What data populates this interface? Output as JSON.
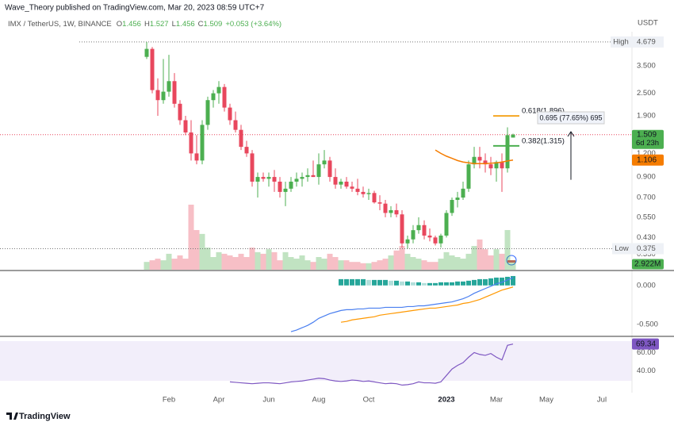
{
  "header": {
    "publisher": "Wave_Theory published on TradingView.com, Mar 20, 2023 08:59 UTC+7",
    "currency": "USDT"
  },
  "legend": {
    "symbol": "IMX / TetherUS, 1W, BINANCE",
    "field_labels": [
      "O",
      "H",
      "L",
      "C"
    ],
    "change": "+0.053 (+3.64%)"
  },
  "footer": {
    "brand": "TradingView"
  },
  "chart_data": {
    "type": "candlestick",
    "title": "IMX / TetherUS, 1W, BINANCE",
    "categories": [
      null,
      null,
      null,
      null,
      "Feb",
      null,
      null,
      null,
      null,
      null,
      null,
      null,
      null,
      "Apr",
      null,
      null,
      null,
      null,
      null,
      null,
      null,
      null,
      "Jun",
      null,
      null,
      null,
      null,
      null,
      null,
      null,
      null,
      "Aug",
      null,
      null,
      null,
      null,
      null,
      null,
      null,
      null,
      "Oct",
      null,
      null,
      null,
      null,
      null,
      null,
      null,
      null,
      null,
      null,
      null,
      null,
      null,
      "2023",
      null,
      null,
      null,
      null,
      null,
      null,
      null,
      null,
      "Mar",
      null,
      null,
      null,
      null,
      null,
      null,
      null,
      null,
      "May",
      null,
      null,
      null,
      null,
      null,
      null,
      null,
      null,
      null,
      "Jul"
    ],
    "open": [
      3.9,
      4.3,
      2.6,
      2.3,
      2.55,
      2.9,
      2.2,
      1.8,
      1.55,
      1.2,
      1.1,
      1.7,
      2.3,
      2.5,
      2.7,
      2.1,
      1.8,
      1.6,
      1.3,
      1.2,
      0.85,
      0.9,
      0.88,
      0.9,
      0.85,
      0.75,
      0.78,
      0.85,
      0.88,
      0.9,
      0.92,
      0.9,
      1.05,
      1.1,
      0.9,
      0.82,
      0.85,
      0.8,
      0.78,
      0.75,
      0.73,
      0.74,
      0.66,
      0.65,
      0.58,
      0.6,
      0.57,
      0.4,
      0.42,
      0.47,
      0.5,
      0.44,
      0.43,
      0.4,
      0.44,
      0.58,
      0.68,
      0.7,
      0.78,
      1.05,
      1.15,
      1.1,
      1.05,
      1.0,
      1.08,
      1.0,
      1.456,
      null,
      null,
      null,
      null,
      null,
      null,
      null,
      null,
      null,
      null,
      null,
      null,
      null,
      null,
      null,
      null
    ],
    "high": [
      4.679,
      4.4,
      3.0,
      3.8,
      4.0,
      3.2,
      2.3,
      1.9,
      1.8,
      1.5,
      1.8,
      2.4,
      2.6,
      2.9,
      2.8,
      2.2,
      2.0,
      1.7,
      1.4,
      1.25,
      0.95,
      0.95,
      0.95,
      0.98,
      0.9,
      0.85,
      0.9,
      0.95,
      0.95,
      1.0,
      1.1,
      1.2,
      1.25,
      1.15,
      1.0,
      0.88,
      0.9,
      0.85,
      0.88,
      0.8,
      0.78,
      0.76,
      0.72,
      0.68,
      0.63,
      0.65,
      0.6,
      0.44,
      0.5,
      0.55,
      0.53,
      0.48,
      0.44,
      0.45,
      0.6,
      0.7,
      0.75,
      0.85,
      1.1,
      1.3,
      1.3,
      1.2,
      1.15,
      1.1,
      1.2,
      1.65,
      1.527,
      null,
      null,
      null,
      null,
      null,
      null,
      null,
      null,
      null,
      null,
      null,
      null,
      null,
      null,
      null,
      null
    ],
    "low": [
      3.8,
      2.5,
      1.9,
      2.2,
      2.4,
      2.1,
      1.7,
      1.5,
      1.1,
      1.05,
      1.05,
      1.6,
      2.1,
      2.2,
      2.0,
      1.7,
      1.55,
      1.25,
      1.15,
      0.8,
      0.7,
      0.85,
      0.8,
      0.75,
      0.7,
      0.63,
      0.75,
      0.8,
      0.8,
      0.85,
      0.9,
      0.82,
      1.0,
      0.85,
      0.78,
      0.78,
      0.78,
      0.75,
      0.72,
      0.7,
      0.68,
      0.65,
      0.6,
      0.55,
      0.55,
      0.55,
      0.38,
      0.375,
      0.4,
      0.45,
      0.42,
      0.41,
      0.39,
      0.38,
      0.43,
      0.56,
      0.62,
      0.68,
      0.75,
      1.0,
      1.0,
      0.95,
      0.92,
      0.85,
      0.75,
      0.95,
      1.456,
      null,
      null,
      null,
      null,
      null,
      null,
      null,
      null,
      null,
      null,
      null,
      null,
      null,
      null,
      null,
      null
    ],
    "close": [
      4.3,
      2.6,
      2.3,
      2.55,
      2.9,
      2.2,
      1.8,
      1.55,
      1.2,
      1.1,
      1.7,
      2.3,
      2.5,
      2.7,
      2.1,
      1.8,
      1.6,
      1.3,
      1.2,
      0.85,
      0.9,
      0.88,
      0.9,
      0.85,
      0.75,
      0.78,
      0.85,
      0.88,
      0.9,
      0.92,
      0.9,
      1.05,
      1.1,
      0.9,
      0.82,
      0.85,
      0.8,
      0.78,
      0.75,
      0.73,
      0.74,
      0.66,
      0.65,
      0.58,
      0.6,
      0.57,
      0.4,
      0.42,
      0.47,
      0.5,
      0.44,
      0.43,
      0.4,
      0.44,
      0.58,
      0.68,
      0.7,
      0.78,
      1.05,
      1.15,
      1.1,
      1.05,
      1.0,
      1.08,
      1.0,
      1.5,
      1.509,
      null,
      null,
      null,
      null,
      null,
      null,
      null,
      null,
      null,
      null,
      null,
      null,
      null,
      null,
      null,
      null
    ],
    "up_color": "#4caf50",
    "down_color": "#e8475d",
    "log_scale": true,
    "ylim": [
      0.29,
      5.2
    ],
    "yticks": [
      {
        "value": 3.5,
        "label": "3.500"
      },
      {
        "value": 2.5,
        "label": "2.500"
      },
      {
        "value": 1.9,
        "label": "1.900"
      },
      {
        "value": 1.2,
        "label": "1.200"
      },
      {
        "value": 0.9,
        "label": "0.900"
      },
      {
        "value": 0.7,
        "label": "0.700"
      },
      {
        "value": 0.55,
        "label": "0.550"
      },
      {
        "value": 0.43,
        "label": "0.430"
      },
      {
        "value": 0.35,
        "label": "0.350"
      }
    ],
    "grid": false,
    "high_marker": {
      "label": "High",
      "value": 4.679
    },
    "low_marker": {
      "label": "Low",
      "value": 0.375
    },
    "countdown": "6d 23h",
    "volume": [
      2.4,
      2.9,
      3.4,
      2.9,
      4.9,
      3.4,
      4.4,
      3.4,
      20,
      12.2,
      11,
      6.8,
      3.9,
      5.4,
      4.9,
      4.4,
      3.9,
      4.9,
      3.9,
      6.8,
      5.4,
      4.9,
      6.3,
      5.4,
      2.9,
      5.4,
      3.9,
      3.4,
      4.4,
      2.9,
      2.4,
      3.9,
      3.4,
      4.9,
      3.9,
      2.9,
      2.9,
      2.4,
      2.4,
      2.0,
      2.0,
      2.4,
      2.9,
      3.4,
      4.4,
      5.9,
      7.3,
      4.9,
      3.9,
      3.4,
      2.9,
      2.4,
      2.4,
      3.4,
      5.4,
      4.4,
      3.9,
      3.4,
      4.9,
      7.3,
      9.3,
      6.3,
      4.4,
      6.3,
      4.9,
      12.2,
      2.922,
      null,
      null,
      null,
      null,
      null,
      null,
      null,
      null,
      null,
      null,
      null,
      null,
      null,
      null,
      null,
      null
    ],
    "volume_last_label": "2.922M",
    "ma": {
      "color": "#f57c00",
      "values": [
        null,
        null,
        null,
        null,
        null,
        null,
        null,
        null,
        null,
        null,
        null,
        null,
        null,
        null,
        null,
        null,
        null,
        null,
        null,
        null,
        null,
        null,
        null,
        null,
        null,
        null,
        null,
        null,
        null,
        null,
        null,
        null,
        null,
        null,
        null,
        null,
        null,
        null,
        null,
        null,
        null,
        null,
        null,
        null,
        null,
        null,
        null,
        null,
        null,
        null,
        null,
        null,
        1.25,
        1.2,
        1.16,
        1.13,
        1.1,
        1.08,
        1.07,
        1.06,
        1.06,
        1.06,
        1.065,
        1.07,
        1.08,
        1.095,
        1.106,
        null,
        null,
        null,
        null,
        null,
        null,
        null,
        null,
        null,
        null,
        null,
        null,
        null,
        null,
        null,
        null
      ]
    },
    "fib": [
      {
        "price": 1.896,
        "label": "0.618(1.896)",
        "color": "#f5a623"
      },
      {
        "price": 1.315,
        "label": "0.382(1.315)",
        "color": "#4caf50"
      }
    ],
    "measure": {
      "from": 0.87,
      "to": 1.565,
      "label": "0.695 (77.65%) 695"
    },
    "macd": {
      "ylim": [
        -0.63,
        0.16
      ],
      "yticks": [
        {
          "value": 0,
          "label": "0.000"
        },
        {
          "value": -0.5,
          "label": "-0.500"
        }
      ],
      "macd_color": "#4a7ff0",
      "signal_color": "#ff9800",
      "hist_up_color": "#26a69a",
      "hist_down_color": "#b2dfdb",
      "macd": [
        null,
        null,
        null,
        null,
        null,
        null,
        null,
        null,
        null,
        null,
        null,
        null,
        null,
        null,
        null,
        null,
        null,
        null,
        null,
        null,
        null,
        null,
        null,
        null,
        null,
        null,
        -0.59,
        -0.57,
        -0.54,
        -0.51,
        -0.47,
        -0.42,
        -0.39,
        -0.36,
        -0.34,
        -0.32,
        -0.31,
        -0.31,
        -0.3,
        -0.3,
        -0.29,
        -0.29,
        -0.29,
        -0.28,
        -0.28,
        -0.28,
        -0.28,
        -0.27,
        -0.27,
        -0.26,
        -0.26,
        -0.25,
        -0.24,
        -0.23,
        -0.22,
        -0.21,
        -0.19,
        -0.17,
        -0.14,
        -0.1,
        -0.07,
        -0.04,
        -0.01,
        0.02,
        0.04,
        0.07,
        0.1,
        null,
        null,
        null,
        null,
        null,
        null,
        null,
        null,
        null,
        null,
        null,
        null,
        null,
        null,
        null,
        null
      ],
      "signal": [
        null,
        null,
        null,
        null,
        null,
        null,
        null,
        null,
        null,
        null,
        null,
        null,
        null,
        null,
        null,
        null,
        null,
        null,
        null,
        null,
        null,
        null,
        null,
        null,
        null,
        null,
        null,
        null,
        null,
        null,
        null,
        null,
        null,
        null,
        null,
        -0.47,
        -0.46,
        -0.44,
        -0.43,
        -0.42,
        -0.41,
        -0.4,
        -0.38,
        -0.37,
        -0.36,
        -0.35,
        -0.34,
        -0.33,
        -0.32,
        -0.31,
        -0.3,
        -0.29,
        -0.29,
        -0.28,
        -0.27,
        -0.26,
        -0.25,
        -0.23,
        -0.22,
        -0.2,
        -0.18,
        -0.15,
        -0.12,
        -0.09,
        -0.06,
        -0.04,
        -0.02,
        null,
        null,
        null,
        null,
        null,
        null,
        null,
        null,
        null,
        null,
        null,
        null,
        null,
        null,
        null,
        null
      ],
      "histogram": [
        null,
        null,
        null,
        null,
        null,
        null,
        null,
        null,
        null,
        null,
        null,
        null,
        null,
        null,
        null,
        null,
        null,
        null,
        null,
        null,
        null,
        null,
        null,
        null,
        null,
        null,
        null,
        null,
        null,
        null,
        null,
        null,
        null,
        null,
        null,
        0.08,
        0.08,
        0.08,
        0.08,
        0.08,
        0.07,
        0.07,
        0.07,
        0.07,
        0.06,
        0.06,
        0.05,
        0.05,
        0.04,
        0.04,
        0.03,
        0.03,
        0.03,
        0.04,
        0.04,
        0.04,
        0.05,
        0.05,
        0.06,
        0.07,
        0.08,
        0.08,
        0.09,
        0.1,
        0.1,
        0.11,
        0.12,
        null,
        null,
        null,
        null,
        null,
        null,
        null,
        null,
        null,
        null,
        null,
        null,
        null,
        null,
        null,
        null
      ]
    },
    "rsi": {
      "color": "#7e57c2",
      "ylim": [
        24,
        76
      ],
      "yticks": [
        {
          "value": 60,
          "label": "60.00"
        },
        {
          "value": 40,
          "label": "40.00"
        }
      ],
      "values": [
        null,
        null,
        null,
        null,
        null,
        null,
        null,
        null,
        null,
        null,
        null,
        null,
        null,
        null,
        null,
        28,
        27.5,
        27,
        26.5,
        26,
        26.5,
        27,
        27,
        26.5,
        26,
        27,
        28,
        28.5,
        29,
        30,
        31,
        32,
        31.5,
        30,
        29,
        28.5,
        29,
        30,
        29.5,
        28.5,
        29,
        28,
        27,
        26,
        26.5,
        26,
        24.5,
        25,
        26,
        28,
        27,
        27,
        26.5,
        28,
        35,
        42,
        46,
        49,
        55,
        60,
        58,
        57,
        59,
        55,
        52,
        68,
        69.34,
        null,
        null,
        null,
        null,
        null,
        null,
        null,
        null,
        null,
        null,
        null,
        null,
        null,
        null,
        null,
        null
      ]
    }
  }
}
